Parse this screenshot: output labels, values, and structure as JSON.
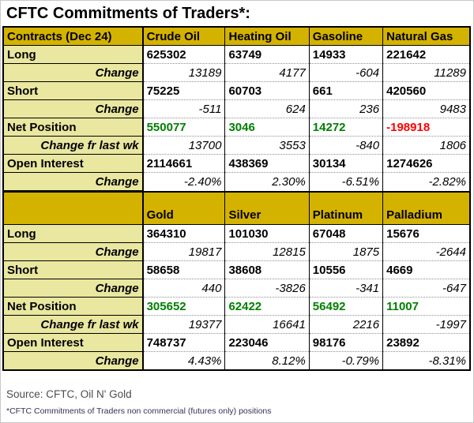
{
  "title": "CFTC Commitments of Traders*:",
  "colors": {
    "header_bg": "#d4b200",
    "label_bg": "#e9e7a0",
    "positive": "#008000",
    "negative": "#ff0000",
    "border": "#000000"
  },
  "tables": [
    {
      "header": [
        "Contracts (Dec 24)",
        "Crude Oil",
        "Heating Oil",
        "Gasoline",
        "Natural Gas"
      ],
      "rows": [
        {
          "label": "Long",
          "type": "main",
          "values": [
            "625302",
            "63749",
            "14933",
            "221642"
          ]
        },
        {
          "label": "Change",
          "type": "change",
          "values": [
            "13189",
            "4177",
            "-604",
            "11289"
          ]
        },
        {
          "label": "Short",
          "type": "main",
          "values": [
            "75225",
            "60703",
            "661",
            "420560"
          ]
        },
        {
          "label": "Change",
          "type": "change",
          "values": [
            "-511",
            "624",
            "236",
            "9483"
          ]
        },
        {
          "label": "Net Position",
          "type": "net",
          "values": [
            "550077",
            "3046",
            "14272",
            "-198918"
          ]
        },
        {
          "label": "Change fr last wk",
          "type": "change",
          "values": [
            "13700",
            "3553",
            "-840",
            "1806"
          ]
        },
        {
          "label": "Open Interest",
          "type": "main",
          "values": [
            "2114661",
            "438369",
            "30134",
            "1274626"
          ]
        },
        {
          "label": "Change",
          "type": "change",
          "values": [
            "-2.40%",
            "2.30%",
            "-6.51%",
            "-2.82%"
          ]
        }
      ]
    },
    {
      "header": [
        "",
        "Gold",
        "Silver",
        "Platinum",
        "Palladium"
      ],
      "rows": [
        {
          "label": "Long",
          "type": "main",
          "values": [
            "364310",
            "101030",
            "67048",
            "15676"
          ]
        },
        {
          "label": "Change",
          "type": "change",
          "values": [
            "19817",
            "12815",
            "1875",
            "-2644"
          ]
        },
        {
          "label": "Short",
          "type": "main",
          "values": [
            "58658",
            "38608",
            "10556",
            "4669"
          ]
        },
        {
          "label": "Change",
          "type": "change",
          "values": [
            "440",
            "-3826",
            "-341",
            "-647"
          ]
        },
        {
          "label": "Net Position",
          "type": "net",
          "values": [
            "305652",
            "62422",
            "56492",
            "11007"
          ]
        },
        {
          "label": "Change fr last wk",
          "type": "change",
          "values": [
            "19377",
            "16641",
            "2216",
            "-1997"
          ]
        },
        {
          "label": "Open Interest",
          "type": "main",
          "values": [
            "748737",
            "223046",
            "98176",
            "23892"
          ]
        },
        {
          "label": "Change",
          "type": "change",
          "values": [
            "4.43%",
            "8.12%",
            "-0.79%",
            "-8.31%"
          ]
        }
      ]
    }
  ],
  "footer": {
    "source": "Source: CFTC, Oil N' Gold",
    "footnote": "*CFTC Commitments of Traders non commercial (futures only) positions"
  }
}
